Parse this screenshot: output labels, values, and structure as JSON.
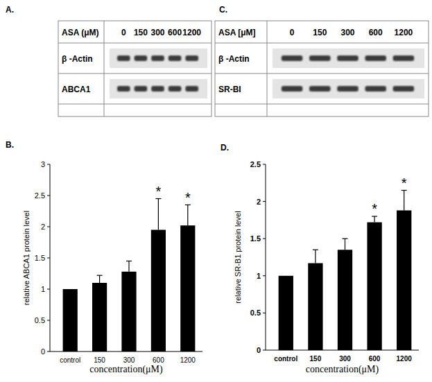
{
  "blots": [
    {
      "panel": "A.",
      "header": "ASA (μM)",
      "lanes": [
        "0",
        "150",
        "300",
        "600",
        "1200"
      ],
      "rows": [
        "β -Actin",
        "ABCA1"
      ]
    },
    {
      "panel": "C.",
      "header": "ASA [μM]",
      "lanes": [
        "0",
        "150",
        "300",
        "600",
        "1200"
      ],
      "rows": [
        "β -Actin",
        "SR-BI"
      ]
    }
  ],
  "chart_data": [
    {
      "type": "bar",
      "title": "B.",
      "x_label": "concentration(μM)",
      "y_label": "relative ABCA1 protein level",
      "categories": [
        "control",
        "150",
        "300",
        "600",
        "1200"
      ],
      "values": [
        1,
        1.1,
        1.28,
        1.95,
        2.02
      ],
      "errors": [
        0,
        0.12,
        0.17,
        0.5,
        0.33
      ],
      "significance": [
        null,
        null,
        null,
        "*",
        "*"
      ],
      "color": "#000000",
      "ylim": [
        0,
        3
      ],
      "yticks": [
        0,
        0.5,
        1,
        1.5,
        2,
        2.5,
        3
      ],
      "grid": false
    },
    {
      "type": "bar",
      "title": "D.",
      "x_label": "concentration(μM)",
      "y_label": "relative SR-B1 protein level",
      "categories": [
        "control",
        "150",
        "300",
        "600",
        "1200"
      ],
      "values": [
        1,
        1.17,
        1.35,
        1.72,
        1.88
      ],
      "errors": [
        0,
        0.18,
        0.15,
        0.08,
        0.27
      ],
      "significance": [
        null,
        null,
        null,
        "*",
        "*"
      ],
      "color": "#000000",
      "ylim": [
        0,
        2.5
      ],
      "yticks": [
        0,
        0.5,
        1,
        1.5,
        2,
        2.5
      ],
      "grid": false
    }
  ]
}
